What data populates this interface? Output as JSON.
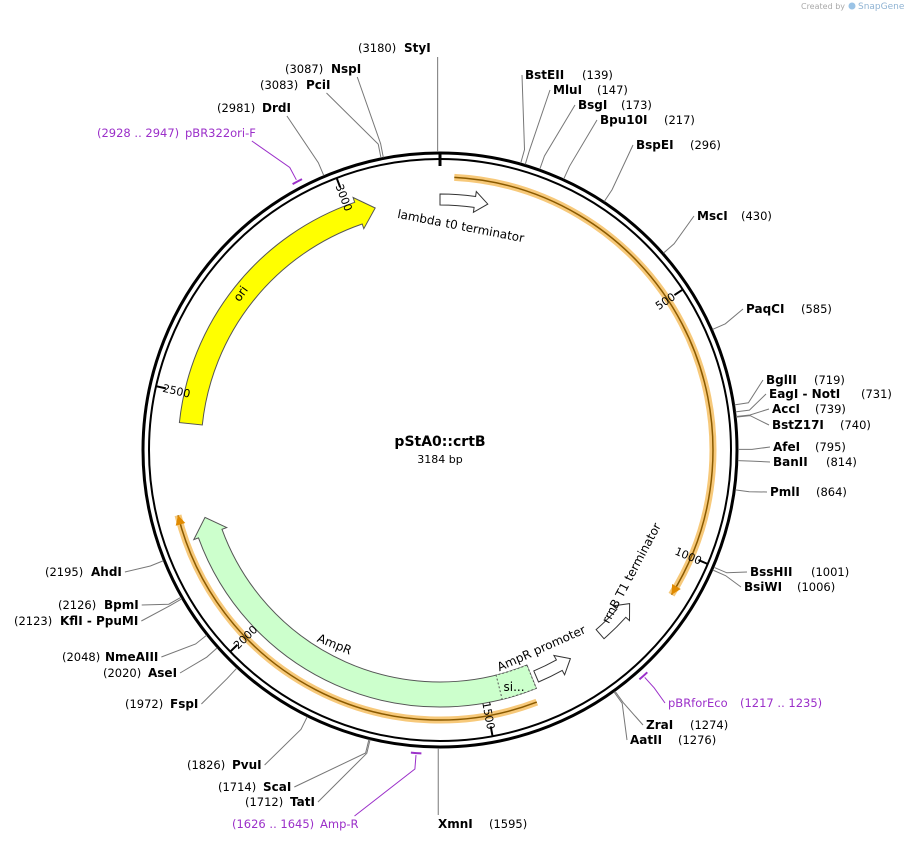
{
  "credit": {
    "prefix": "Created by",
    "brand": "SnapGene"
  },
  "plasmid": {
    "name": "pStA0::crtB",
    "size": "3184 bp",
    "ticks": [
      500,
      1000,
      1500,
      2000,
      2500,
      3000
    ]
  },
  "enzymes": [
    {
      "name": "StyI",
      "site": "(3180)"
    },
    {
      "name": "NspI",
      "site": "(3087)"
    },
    {
      "name": "PciI",
      "site": "(3083)"
    },
    {
      "name": "DrdI",
      "site": "(2981)"
    },
    {
      "name": "BstEII",
      "site": "(139)"
    },
    {
      "name": "MluI",
      "site": "(147)"
    },
    {
      "name": "BsgI",
      "site": "(173)"
    },
    {
      "name": "Bpu10I",
      "site": "(217)"
    },
    {
      "name": "BspEI",
      "site": "(296)"
    },
    {
      "name": "MscI",
      "site": "(430)"
    },
    {
      "name": "PaqCI",
      "site": "(585)"
    },
    {
      "name": "BglII",
      "site": "(719)"
    },
    {
      "name": "EagI - NotI",
      "site": "(731)"
    },
    {
      "name": "AccI",
      "site": "(739)"
    },
    {
      "name": "BstZ17I",
      "site": "(740)"
    },
    {
      "name": "AfeI",
      "site": "(795)"
    },
    {
      "name": "BanII",
      "site": "(814)"
    },
    {
      "name": "PmlI",
      "site": "(864)"
    },
    {
      "name": "BssHII",
      "site": "(1001)"
    },
    {
      "name": "BsiWI",
      "site": "(1006)"
    },
    {
      "name": "ZraI",
      "site": "(1274)"
    },
    {
      "name": "AatII",
      "site": "(1276)"
    },
    {
      "name": "XmnI",
      "site": "(1595)"
    },
    {
      "name": "TatI",
      "site": "(1712)"
    },
    {
      "name": "ScaI",
      "site": "(1714)"
    },
    {
      "name": "PvuI",
      "site": "(1826)"
    },
    {
      "name": "FspI",
      "site": "(1972)"
    },
    {
      "name": "AseI",
      "site": "(2020)"
    },
    {
      "name": "NmeAIII",
      "site": "(2048)"
    },
    {
      "name": "KflI - PpuMI",
      "site": "(2123)"
    },
    {
      "name": "BpmI",
      "site": "(2126)"
    },
    {
      "name": "AhdI",
      "site": "(2195)"
    }
  ],
  "primers": [
    {
      "name": "pBR322ori-F",
      "range": "(2928 .. 2947)"
    },
    {
      "name": "pBRforEco",
      "range": "(1217 .. 1235)"
    },
    {
      "name": "Amp-R",
      "range": "(1626 .. 1645)"
    }
  ],
  "features": [
    {
      "name": "lambda t0 terminator"
    },
    {
      "name": "rrnB T1 terminator"
    },
    {
      "name": "AmpR promoter"
    },
    {
      "name": "AmpR"
    },
    {
      "name": "si..."
    },
    {
      "name": "ori"
    }
  ]
}
